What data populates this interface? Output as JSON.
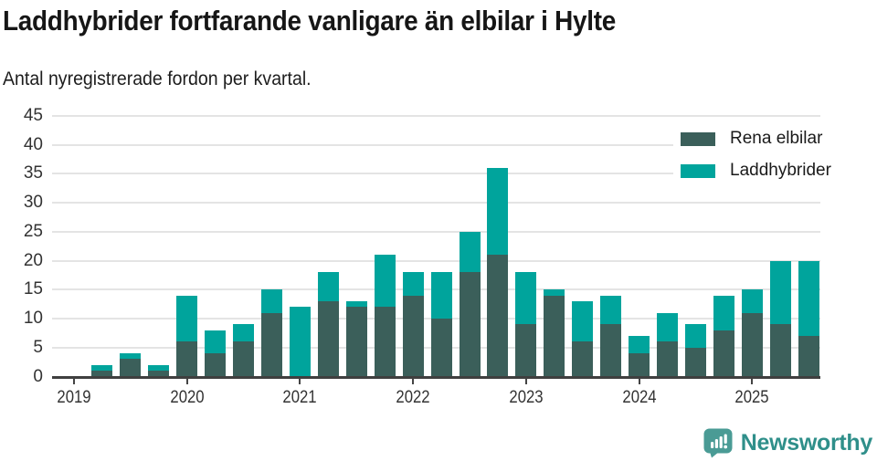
{
  "header": {
    "title": "Laddhybrider fortfarande vanligare än elbilar i Hylte",
    "subtitle": "Antal nyregistrerade fordon per kvartal."
  },
  "chart_data": {
    "type": "bar",
    "stacked": true,
    "title": "Laddhybrider fortfarande vanligare än elbilar i Hylte",
    "subtitle": "Antal nyregistrerade fordon per kvartal.",
    "categories": [
      "2019 Q1",
      "2019 Q2",
      "2019 Q3",
      "2019 Q4",
      "2020 Q1",
      "2020 Q2",
      "2020 Q3",
      "2020 Q4",
      "2021 Q1",
      "2021 Q2",
      "2021 Q3",
      "2021 Q4",
      "2022 Q1",
      "2022 Q2",
      "2022 Q3",
      "2022 Q4",
      "2023 Q1",
      "2023 Q2",
      "2023 Q3",
      "2023 Q4",
      "2024 Q1",
      "2024 Q2",
      "2024 Q3",
      "2024 Q4",
      "2025 Q1",
      "2025 Q2",
      "2025 Q3"
    ],
    "series": [
      {
        "name": "Rena elbilar",
        "color": "#3b5f5a",
        "values": [
          0,
          1,
          3,
          1,
          6,
          4,
          6,
          11,
          0,
          13,
          12,
          12,
          14,
          10,
          18,
          21,
          9,
          14,
          6,
          9,
          4,
          6,
          5,
          8,
          11,
          9,
          7
        ]
      },
      {
        "name": "Laddhybrider",
        "color": "#00a49c",
        "values": [
          0,
          1,
          1,
          1,
          8,
          4,
          3,
          4,
          12,
          5,
          1,
          9,
          4,
          8,
          7,
          15,
          9,
          1,
          7,
          5,
          3,
          5,
          4,
          6,
          4,
          11,
          13
        ]
      }
    ],
    "totals": [
      0,
      2,
      4,
      2,
      14,
      8,
      9,
      15,
      12,
      18,
      13,
      21,
      18,
      18,
      25,
      36,
      18,
      15,
      13,
      14,
      7,
      11,
      9,
      14,
      15,
      20,
      20
    ],
    "ylim": [
      0,
      45
    ],
    "yticks": [
      0,
      5,
      10,
      15,
      20,
      25,
      30,
      35,
      40,
      45
    ],
    "xticks": [
      "2019",
      "2020",
      "2021",
      "2022",
      "2023",
      "2024",
      "2025"
    ],
    "grid": "horizontal",
    "legend_position": "top-right"
  },
  "footer": {
    "brand": "Newsworthy"
  }
}
